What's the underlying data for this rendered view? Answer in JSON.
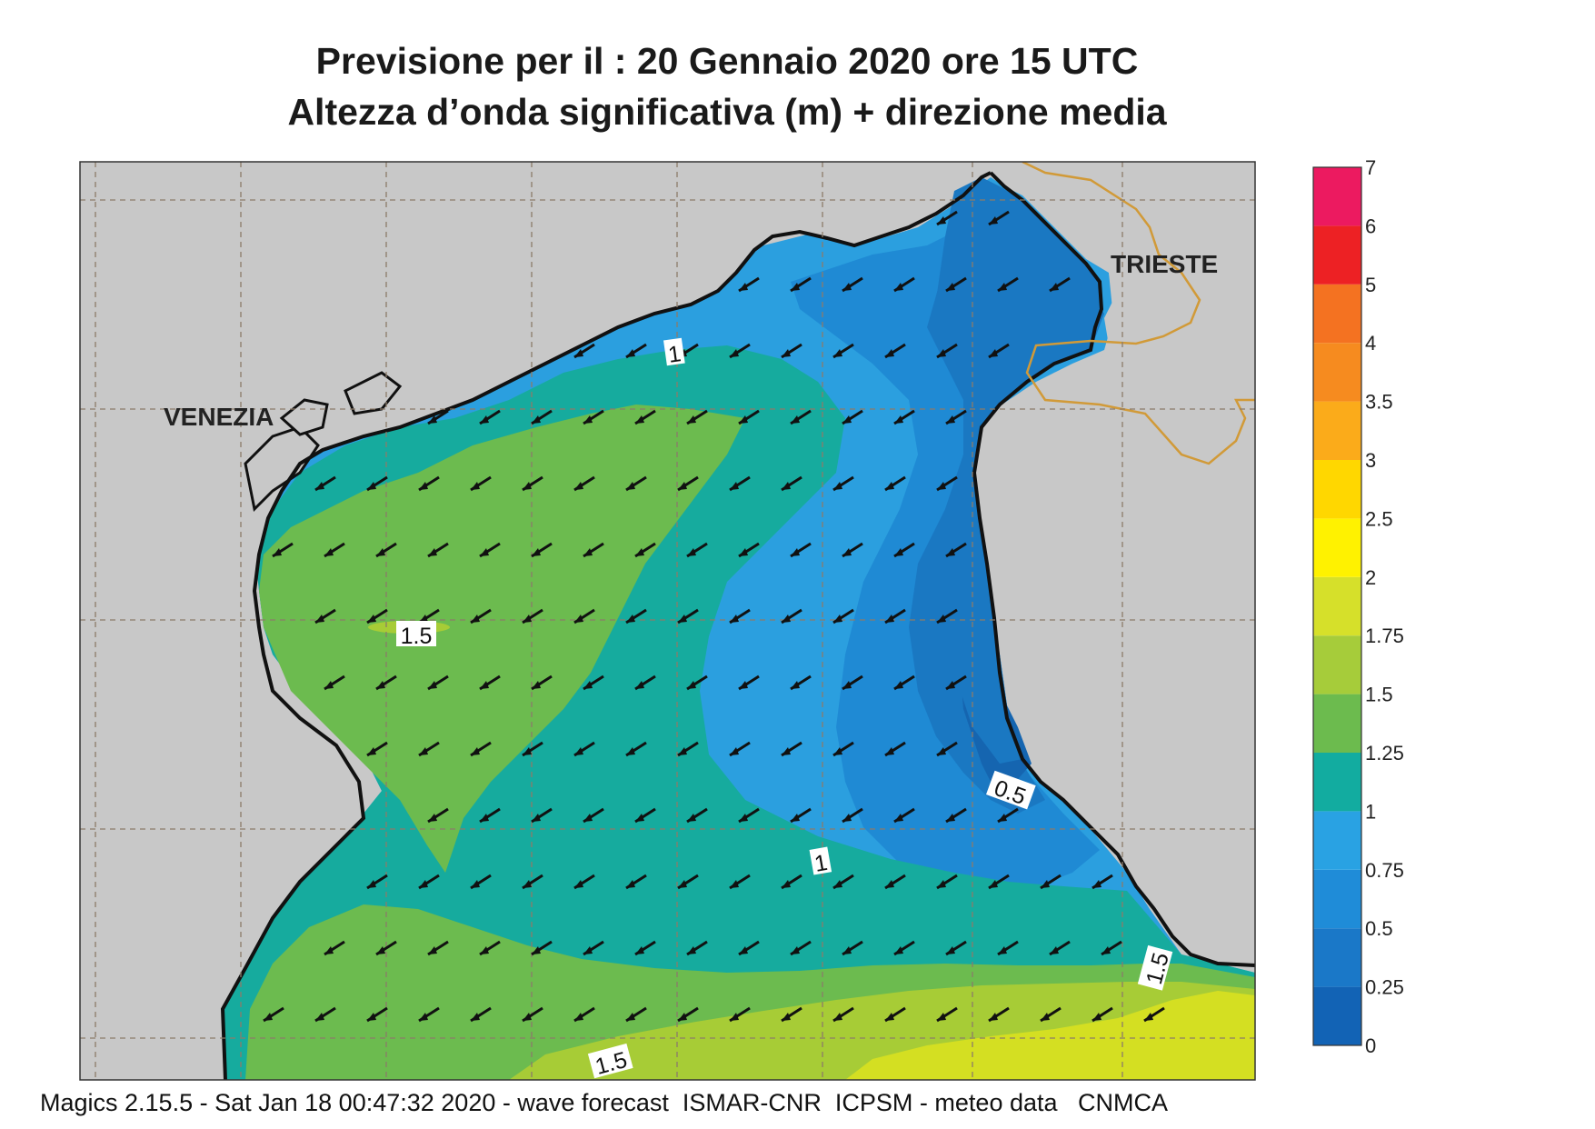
{
  "title": {
    "line1": "Previsione per il  :  20  Gennaio  2020   ore 15 UTC",
    "line2": "Altezza d’onda significativa (m) + direzione media"
  },
  "map": {
    "places": [
      "VENEZIA",
      "TRIESTE"
    ],
    "contour_labels": [
      "1",
      "1.5",
      "0.5",
      "1",
      "1.5",
      "1.5"
    ],
    "sea_colors": {
      "0-0.25": "#1565b0",
      "0.25-0.5": "#1a78c2",
      "0.5-0.75": "#1f8ad4",
      "0.75-1": "#2b9fdf",
      "1-1.25": "#16ab9e",
      "1.25-1.5": "#6cbb4f",
      "1.5-1.75": "#a7cc36",
      "1.75-2": "#d4df22"
    },
    "land_color": "#c8c8c8",
    "coast_color": "#111111",
    "border_color": "#d19a38",
    "arrow_direction": "south-west"
  },
  "legend": {
    "ticks": [
      "0",
      "0.25",
      "0.5",
      "0.75",
      "1",
      "1.25",
      "1.5",
      "1.75",
      "2",
      "2.5",
      "3",
      "3.5",
      "4",
      "5",
      "6",
      "7"
    ],
    "colors": [
      "#1263b5",
      "#1a78c8",
      "#1f8cd8",
      "#29a2e3",
      "#12aca0",
      "#6cbb4e",
      "#a6cc3a",
      "#d6e02a",
      "#fff200",
      "#ffd700",
      "#fbab1a",
      "#f68b1f",
      "#f47221",
      "#ed2124",
      "#ec1a60"
    ]
  },
  "footer": {
    "text": "Magics 2.15.5 - Sat Jan 18 00:47:32 2020 - wave forecast  ISMAR-CNR  ICPSM - meteo data   CNMCA"
  }
}
